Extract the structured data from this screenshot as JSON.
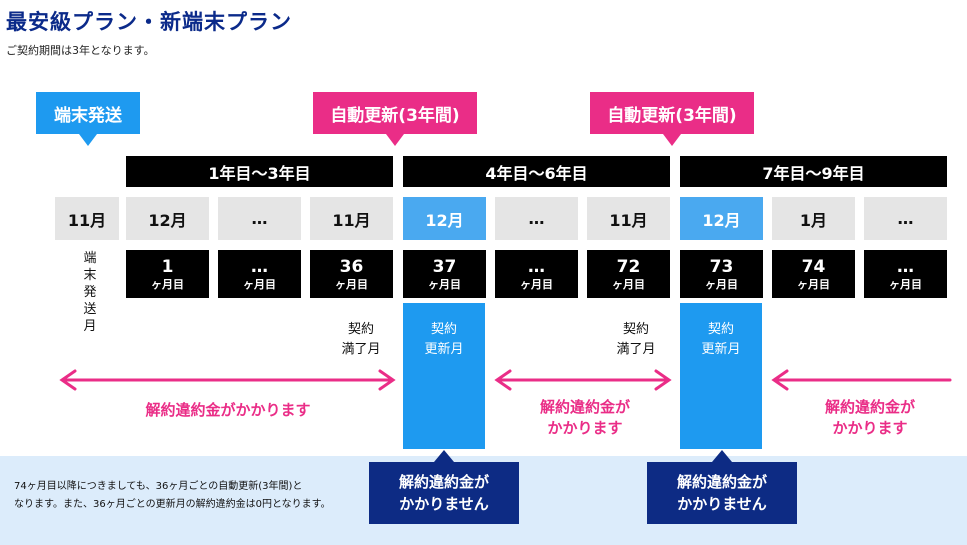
{
  "header": {
    "title": "最安級プラン・新端末プラン",
    "subtitle": "ご契約期間は3年となります。"
  },
  "tags": {
    "ship": "端末発送",
    "renew1": "自動更新(3年間)",
    "renew2": "自動更新(3年間)"
  },
  "years": [
    "1年目〜3年目",
    "4年目〜6年目",
    "7年目〜9年目"
  ],
  "months": [
    "11月",
    "12月",
    "…",
    "11月",
    "12月",
    "…",
    "11月",
    "12月",
    "1月",
    "…"
  ],
  "counts": [
    {
      "num": "1",
      "unit": "ヶ月目"
    },
    {
      "num": "…",
      "unit": "ヶ月目"
    },
    {
      "num": "36",
      "unit": "ヶ月目"
    },
    {
      "num": "37",
      "unit": "ヶ月目"
    },
    {
      "num": "…",
      "unit": "ヶ月目"
    },
    {
      "num": "72",
      "unit": "ヶ月目"
    },
    {
      "num": "73",
      "unit": "ヶ月目"
    },
    {
      "num": "74",
      "unit": "ヶ月目"
    },
    {
      "num": "…",
      "unit": "ヶ月目"
    }
  ],
  "ship_month_label": "端末発送月",
  "notes": {
    "expiry1": [
      "契約",
      "満了月"
    ],
    "renewal1": [
      "契約",
      "更新月"
    ],
    "expiry2": [
      "契約",
      "満了月"
    ],
    "renewal2": [
      "契約",
      "更新月"
    ]
  },
  "penalties": {
    "p1": "解約違約金がかかります",
    "p2": [
      "解約違約金が",
      "かかります"
    ],
    "p3": [
      "解約違約金が",
      "かかります"
    ]
  },
  "no_penalty": {
    "n1": [
      "解約違約金が",
      "かかりません"
    ],
    "n2": [
      "解約違約金が",
      "かかりません"
    ]
  },
  "info": [
    "74ヶ月目以降につきましても、36ヶ月ごとの自動更新(3年間)と",
    "なります。また、36ヶ月ごとの更新月の解約違約金は0円となります。"
  ],
  "colors": {
    "title": "#0b2a8a",
    "pink": "#ea2d87",
    "blue": "#1e9af0",
    "highlight_month": "#4aa9f0",
    "navy": "#0d2b84",
    "info_bg": "#dcecfb"
  }
}
